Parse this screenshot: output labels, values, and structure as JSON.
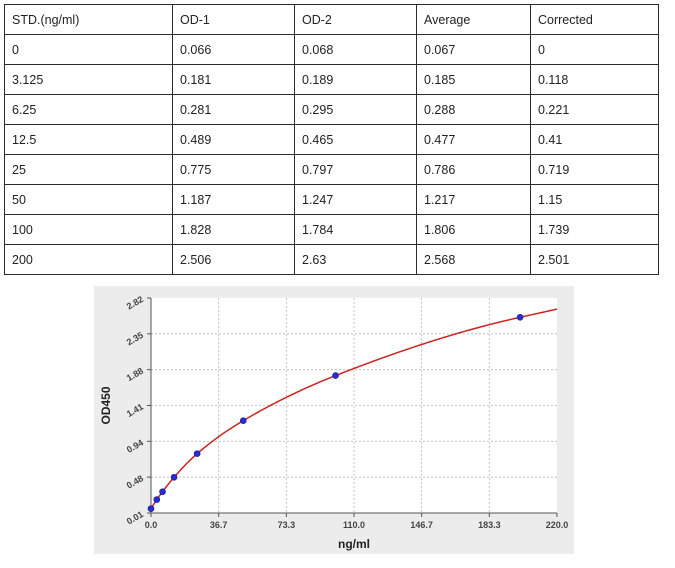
{
  "table": {
    "headers": [
      "STD.(ng/ml)",
      "OD-1",
      "OD-2",
      "Average",
      "Corrected"
    ],
    "rows": [
      [
        "0",
        "0.066",
        "0.068",
        "0.067",
        "0"
      ],
      [
        "3.125",
        "0.181",
        "0.189",
        "0.185",
        "0.118"
      ],
      [
        "6.25",
        "0.281",
        "0.295",
        "0.288",
        "0.221"
      ],
      [
        "12.5",
        "0.489",
        "0.465",
        "0.477",
        "0.41"
      ],
      [
        "25",
        "0.775",
        "0.797",
        "0.786",
        "0.719"
      ],
      [
        "50",
        "1.187",
        "1.247",
        "1.217",
        "1.15"
      ],
      [
        "100",
        "1.828",
        "1.784",
        "1.806",
        "1.739"
      ],
      [
        "200",
        "2.506",
        "2.63",
        "2.568",
        "2.501"
      ]
    ]
  },
  "chart_data": {
    "type": "scatter",
    "title": "",
    "xlabel": "ng/ml",
    "ylabel": "OD450",
    "xlim": [
      0,
      220
    ],
    "ylim": [
      0.01,
      2.82
    ],
    "xticks": [
      "0.0",
      "36.7",
      "73.3",
      "110.0",
      "146.7",
      "183.3",
      "220.0"
    ],
    "yticks": [
      "0.01",
      "0.48",
      "0.94",
      "1.41",
      "1.88",
      "2.35",
      "2.82"
    ],
    "grid": true,
    "points": {
      "x": [
        0,
        3.125,
        6.25,
        12.5,
        25,
        50,
        100,
        200
      ],
      "y": [
        0.067,
        0.185,
        0.288,
        0.477,
        0.786,
        1.217,
        1.806,
        2.568
      ]
    },
    "fit_curve": true,
    "colors": {
      "curve": "#cc2222",
      "points": "#2a2ad8",
      "panel": "#ececec",
      "plot_bg": "#ffffff"
    }
  }
}
